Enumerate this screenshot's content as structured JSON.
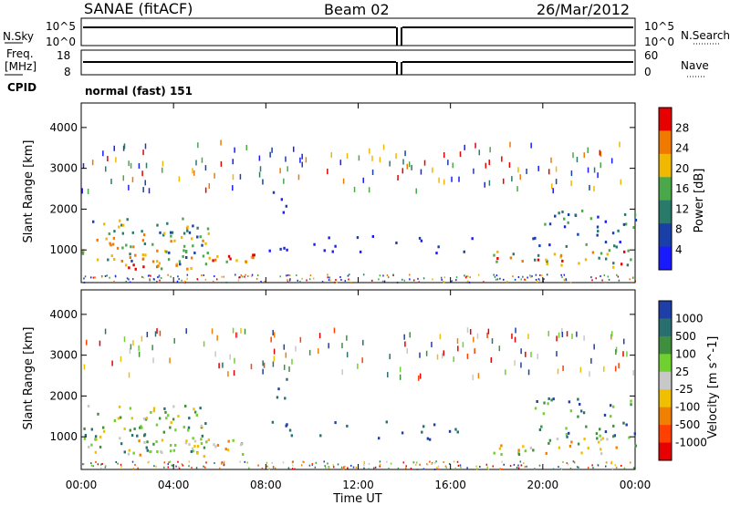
{
  "header": {
    "station": "SANAE (fitACF)",
    "beam": "Beam 02",
    "date": "26/Mar/2012"
  },
  "top_panels": {
    "nsky_label": "N.Sky",
    "nsky_ticks": [
      "10^5",
      "10^0"
    ],
    "nsearch_label": "N.Search",
    "nsearch_ticks": [
      "10^5",
      "10^0"
    ],
    "freq_label": "Freq.",
    "freq_unit": "[MHz]",
    "freq_ticks": [
      "18",
      "8"
    ],
    "nave_label": "Nave",
    "nave_ticks": [
      "60",
      "0"
    ],
    "cpid_label": "CPID",
    "cpid_text": "normal (fast) 151"
  },
  "chart_data": [
    {
      "type": "heatmap",
      "panel": "power",
      "ylabel": "Slant Range [km]",
      "yticks": [
        1000,
        2000,
        3000,
        4000
      ],
      "ylim": [
        200,
        4600
      ],
      "xlim_hours": [
        0,
        24
      ],
      "colorbar_label": "Power [dB]",
      "colorbar_ticks": [
        4,
        8,
        12,
        16,
        20,
        24,
        28
      ],
      "colors": [
        "#1a1aff",
        "#1a3fa8",
        "#2a7a6a",
        "#4aa84a",
        "#f0b800",
        "#f07a00",
        "#e60000"
      ]
    },
    {
      "type": "heatmap",
      "panel": "velocity",
      "ylabel": "Slant Range [km]",
      "yticks": [
        1000,
        2000,
        3000,
        4000
      ],
      "ylim": [
        200,
        4600
      ],
      "xlim_hours": [
        0,
        24
      ],
      "colorbar_label": "Velocity [m s^-1]",
      "colorbar_ticks": [
        1000,
        500,
        100,
        25,
        -25,
        -100,
        -500,
        -1000
      ],
      "colors": [
        "#1f3fa8",
        "#2a6f70",
        "#3f8f3f",
        "#6fd030",
        "#c8c8c8",
        "#f0c000",
        "#f08000",
        "#ff4000",
        "#e60000"
      ]
    }
  ],
  "xaxis": {
    "ticks": [
      "00:00",
      "04:00",
      "08:00",
      "12:00",
      "16:00",
      "20:00",
      "00:00"
    ],
    "label": "Time UT"
  }
}
